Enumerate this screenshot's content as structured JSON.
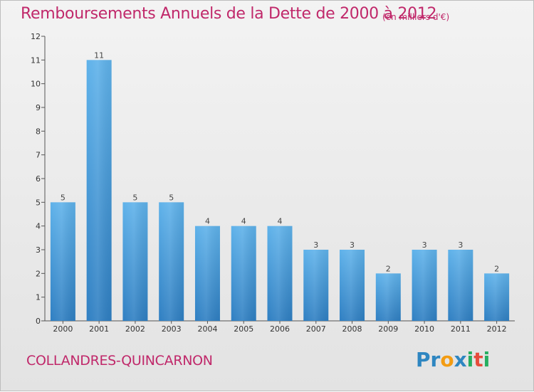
{
  "title": "Remboursements Annuels de la Dette de 2000 à 2012",
  "unit_note": "(en milliers d'€)",
  "commune": "COLLANDRES-QUINCARNON",
  "logo": {
    "letters": [
      "P",
      "r",
      "o",
      "x",
      "i",
      "t",
      "i"
    ],
    "colors": [
      "#2e86c1",
      "#2e86c1",
      "#f39c12",
      "#2e86c1",
      "#27ae60",
      "#e74c3c",
      "#27ae60"
    ]
  },
  "colors": {
    "bar": "#3b8fd4",
    "bar_light": "#5aaee8",
    "accent": "#c0286a"
  },
  "chart_data": {
    "type": "bar",
    "categories": [
      "2000",
      "2001",
      "2002",
      "2003",
      "2004",
      "2005",
      "2006",
      "2007",
      "2008",
      "2009",
      "2010",
      "2011",
      "2012"
    ],
    "values": [
      5,
      11,
      5,
      5,
      4,
      4,
      4,
      3,
      3,
      2,
      3,
      3,
      2
    ],
    "title": "Remboursements Annuels de la Dette de 2000 à 2012",
    "xlabel": "",
    "ylabel": "",
    "ylim": [
      0,
      12
    ],
    "yticks": [
      0,
      1,
      2,
      3,
      4,
      5,
      6,
      7,
      8,
      9,
      10,
      11,
      12
    ],
    "grid": false,
    "data_labels": true
  }
}
